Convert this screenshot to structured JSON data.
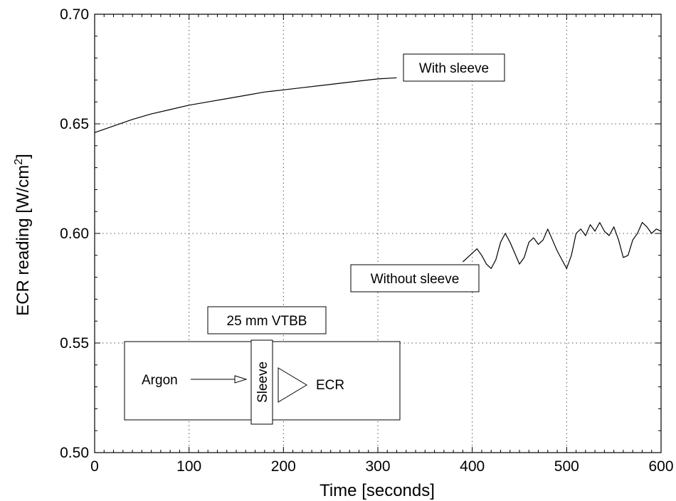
{
  "chart_data": {
    "type": "line",
    "xlabel": "Time [seconds]",
    "ylabel_main": "ECR reading [W/cm",
    "ylabel_sup": "2",
    "ylabel_close": "]",
    "xlim": [
      0,
      600
    ],
    "ylim": [
      0.5,
      0.7
    ],
    "xticks": [
      0,
      100,
      200,
      300,
      400,
      500,
      600
    ],
    "xtick_labels": [
      "0",
      "100",
      "200",
      "300",
      "400",
      "500",
      "600"
    ],
    "yticks": [
      0.5,
      0.55,
      0.6,
      0.65,
      0.7
    ],
    "ytick_labels": [
      "0.50",
      "0.55",
      "0.60",
      "0.65",
      "0.70"
    ],
    "grid": true,
    "series": [
      {
        "label": "With sleeve",
        "color": "#000000",
        "x": [
          0,
          20,
          40,
          60,
          80,
          100,
          120,
          140,
          160,
          180,
          200,
          220,
          240,
          260,
          280,
          300,
          320
        ],
        "y": [
          0.646,
          0.649,
          0.652,
          0.6545,
          0.6565,
          0.6585,
          0.66,
          0.6615,
          0.663,
          0.6645,
          0.6655,
          0.6665,
          0.6675,
          0.6685,
          0.6695,
          0.6705,
          0.671
        ]
      },
      {
        "label": "Without sleeve",
        "color": "#000000",
        "x": [
          390,
          395,
          400,
          405,
          410,
          415,
          420,
          425,
          430,
          435,
          440,
          445,
          450,
          455,
          460,
          465,
          470,
          475,
          480,
          485,
          490,
          495,
          500,
          505,
          510,
          515,
          520,
          525,
          530,
          535,
          540,
          545,
          550,
          555,
          560,
          565,
          570,
          575,
          580,
          585,
          590,
          595,
          600
        ],
        "y": [
          0.587,
          0.589,
          0.591,
          0.593,
          0.59,
          0.586,
          0.584,
          0.588,
          0.596,
          0.6,
          0.596,
          0.591,
          0.586,
          0.589,
          0.596,
          0.598,
          0.595,
          0.597,
          0.602,
          0.597,
          0.592,
          0.588,
          0.584,
          0.59,
          0.6,
          0.602,
          0.599,
          0.604,
          0.601,
          0.605,
          0.601,
          0.599,
          0.603,
          0.597,
          0.589,
          0.59,
          0.597,
          0.6,
          0.605,
          0.603,
          0.6,
          0.602,
          0.601
        ]
      }
    ],
    "annotations": {
      "with_sleeve": "With sleeve",
      "without_sleeve": "Without sleeve"
    },
    "inset_diagram": {
      "title": "25 mm VTBB",
      "source": "Argon",
      "sleeve": "Sleeve",
      "detector": "ECR"
    }
  }
}
